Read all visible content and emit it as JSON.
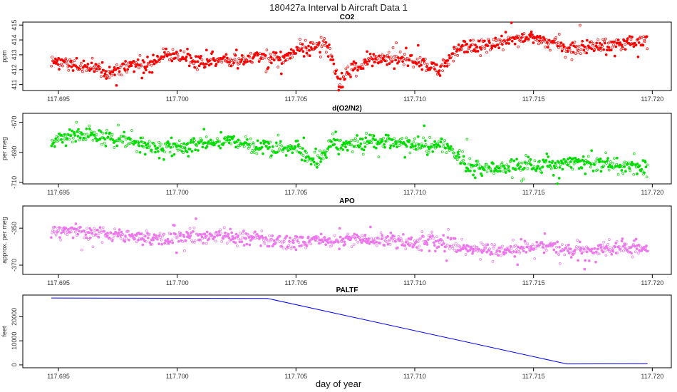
{
  "figure": {
    "title": "180427a   Interval b Aircraft Data 1",
    "xlabel": "day of year"
  },
  "colors": {
    "co2": "#ff0000",
    "o2n2": "#00dd00",
    "apo": "#ee77ee",
    "paltf": "#0000ff"
  },
  "chart_data": [
    {
      "type": "scatter",
      "title": "CO2",
      "ylabel": "ppm",
      "xlim": [
        117.6935,
        117.7208
      ],
      "ylim": [
        410.6,
        415.2
      ],
      "xticks": [
        "117.695",
        "117.700",
        "117.705",
        "117.710",
        "117.715",
        "117.720"
      ],
      "xtick_values": [
        117.695,
        117.7,
        117.705,
        117.71,
        117.715,
        117.72
      ],
      "yticks": [
        "411",
        "412",
        "413",
        "414",
        "415"
      ],
      "ytick_values": [
        411,
        412,
        413,
        414,
        415
      ],
      "trend": {
        "x": [
          117.6947,
          117.6955,
          117.6965,
          117.6972,
          117.698,
          117.6988,
          117.6995,
          117.7005,
          117.701,
          117.7018,
          117.7025,
          117.7035,
          117.7045,
          117.705,
          117.7055,
          117.7062,
          117.7066,
          117.7068,
          117.707,
          117.7075,
          117.708,
          117.709,
          117.7098,
          117.7105,
          117.711,
          117.7112,
          117.7118,
          117.7125,
          117.7135,
          117.714,
          117.7145,
          117.715,
          117.7155,
          117.7162,
          117.717,
          117.718,
          117.719,
          117.7198
        ],
        "y": [
          412.5,
          412.4,
          412.1,
          411.8,
          412.3,
          412.3,
          413.0,
          412.8,
          412.4,
          412.6,
          412.6,
          412.8,
          412.8,
          413.3,
          413.4,
          413.9,
          412.3,
          410.9,
          411.5,
          412.0,
          412.6,
          412.8,
          412.7,
          412.4,
          412.0,
          412.1,
          413.4,
          413.6,
          413.8,
          414.0,
          414.2,
          414.0,
          414.0,
          413.4,
          413.5,
          413.7,
          413.8,
          414.0
        ]
      },
      "noise": 0.45
    },
    {
      "type": "scatter",
      "title": "d(O2/N2)",
      "ylabel": "per meg",
      "xlim": [
        117.6935,
        117.7208
      ],
      "ylim": [
        -711,
        -664
      ],
      "xticks": [
        "117.695",
        "117.700",
        "117.705",
        "117.710",
        "117.715",
        "117.720"
      ],
      "xtick_values": [
        117.695,
        117.7,
        117.705,
        117.71,
        117.715,
        117.72
      ],
      "yticks": [
        "-710",
        "-690",
        "-670"
      ],
      "ytick_values": [
        -710,
        -690,
        -670
      ],
      "trend": {
        "x": [
          117.6947,
          117.6955,
          117.6965,
          117.6975,
          117.6985,
          117.6995,
          117.7005,
          117.7015,
          117.7025,
          117.7035,
          117.7045,
          117.705,
          117.7058,
          117.7062,
          117.7066,
          117.707,
          117.7078,
          117.709,
          117.7098,
          117.7105,
          117.711,
          117.7115,
          117.712,
          117.7125,
          117.7135,
          117.7145,
          117.7155,
          117.7165,
          117.7175,
          117.7185,
          117.7195,
          117.7198
        ],
        "y": [
          -683,
          -678,
          -679,
          -681,
          -685,
          -687,
          -686,
          -683,
          -684,
          -686,
          -688,
          -687,
          -698,
          -690,
          -683,
          -685,
          -682,
          -683,
          -685,
          -686,
          -684,
          -687,
          -697,
          -700,
          -700,
          -699,
          -700,
          -697,
          -697,
          -699,
          -700,
          -700
        ]
      },
      "noise": 4.5
    },
    {
      "type": "scatter",
      "title": "APO",
      "ylabel": "approx. per meg",
      "xlim": [
        117.6935,
        117.7208
      ],
      "ylim": [
        -375,
        -338
      ],
      "xticks": [
        "117.695",
        "117.700",
        "117.705",
        "117.710",
        "117.715",
        "117.720"
      ],
      "xtick_values": [
        117.695,
        117.7,
        117.705,
        117.71,
        117.715,
        117.72
      ],
      "yticks": [
        "-370",
        "-350"
      ],
      "ytick_values": [
        -370,
        -350
      ],
      "trend": {
        "x": [
          117.6947,
          117.6955,
          117.6965,
          117.6975,
          117.6985,
          117.6995,
          117.7005,
          117.7015,
          117.7025,
          117.7035,
          117.7045,
          117.7055,
          117.7065,
          117.7075,
          117.7085,
          117.7095,
          117.7105,
          117.711,
          117.7118,
          117.7125,
          117.7135,
          117.7145,
          117.7155,
          117.7165,
          117.7175,
          117.7185,
          117.7198
        ],
        "y": [
          -352,
          -351,
          -353,
          -354,
          -355,
          -356,
          -355,
          -354,
          -355,
          -356,
          -358,
          -356,
          -357,
          -356,
          -356,
          -357,
          -358,
          -358,
          -360,
          -362,
          -362,
          -361,
          -360,
          -362,
          -362,
          -361,
          -360
        ]
      },
      "noise": 3.6
    },
    {
      "type": "line",
      "title": "PALTF",
      "ylabel": "feet",
      "xlim": [
        117.6935,
        117.7208
      ],
      "ylim": [
        -1200,
        29000
      ],
      "xticks": [
        "117.695",
        "117.700",
        "117.705",
        "117.710",
        "117.715",
        "117.720"
      ],
      "xtick_values": [
        117.695,
        117.7,
        117.705,
        117.71,
        117.715,
        117.72
      ],
      "yticks": [
        "0",
        "10000",
        "20000"
      ],
      "ytick_values": [
        0,
        10000,
        20000
      ],
      "x": [
        117.6947,
        117.7038,
        117.7164,
        117.7198
      ],
      "y": [
        27800,
        27600,
        400,
        500
      ]
    }
  ]
}
